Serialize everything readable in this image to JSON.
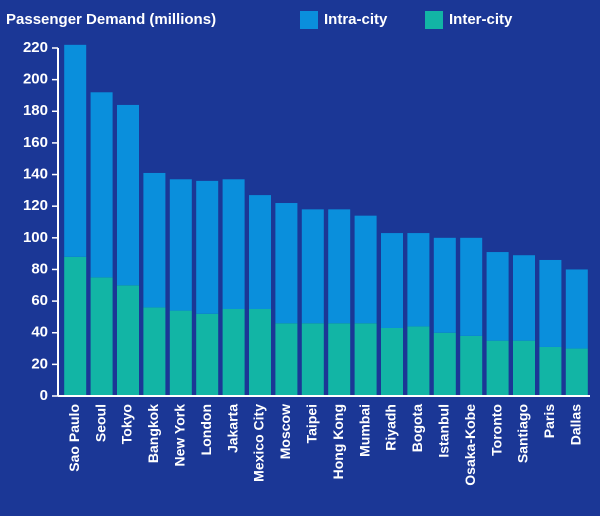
{
  "chart_data": {
    "type": "stacked_bar",
    "title": "Passenger Demand (millions)",
    "categories": [
      "Sao Paulo",
      "Seoul",
      "Tokyo",
      "Bangkok",
      "New York",
      "London",
      "Jakarta",
      "Mexico City",
      "Moscow",
      "Taipei",
      "Hong Kong",
      "Mumbai",
      "Riyadh",
      "Bogota",
      "Istanbul",
      "Osaka-Kobe",
      "Toronto",
      "Santiago",
      "Paris",
      "Dallas"
    ],
    "series": [
      {
        "name": "Intra-city",
        "color": "#0a8fdc",
        "values": [
          134,
          117,
          114,
          85,
          83,
          84,
          82,
          72,
          76,
          72,
          72,
          68,
          60,
          59,
          60,
          62,
          56,
          54,
          55,
          50
        ]
      },
      {
        "name": "Inter-city",
        "color": "#12b5a5",
        "values": [
          88,
          75,
          70,
          56,
          54,
          52,
          55,
          55,
          46,
          46,
          46,
          46,
          43,
          44,
          40,
          38,
          35,
          35,
          31,
          30
        ]
      }
    ],
    "ylim": [
      0,
      220
    ],
    "yticks": [
      0,
      20,
      40,
      60,
      80,
      100,
      120,
      140,
      160,
      180,
      200,
      220
    ]
  }
}
